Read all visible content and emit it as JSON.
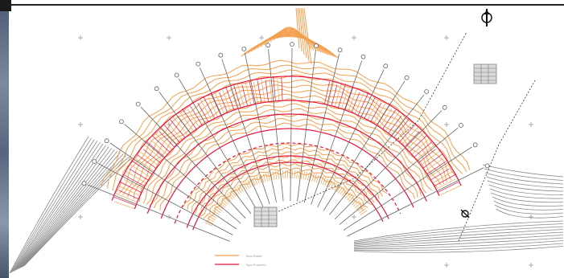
{
  "colors": {
    "original_ground": "#f2a04e",
    "design_line": "#e8123f",
    "annotation": "#666666",
    "hatch": "#9a9a9a"
  },
  "legend": {
    "entries": [
      {
        "label": "Topo Existe",
        "color": "#f2a04e"
      },
      {
        "label": "Topo Proyecto",
        "color": "#e8123f"
      }
    ]
  },
  "icons": {
    "north_arrow": "north-arrow-icon",
    "centerline_symbol": "centerline-symbol-icon",
    "table_upper": "data-table-icon",
    "table_lower": "data-table-icon"
  }
}
